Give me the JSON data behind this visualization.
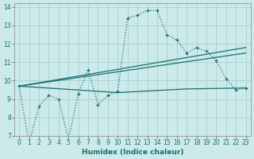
{
  "xlabel": "Humidex (Indice chaleur)",
  "bg_color": "#cceaea",
  "grid_color": "#aad4d4",
  "line_color": "#1a6e6e",
  "xlim": [
    -0.5,
    23.5
  ],
  "ylim": [
    7,
    14.2
  ],
  "xticks": [
    0,
    1,
    2,
    3,
    4,
    5,
    6,
    7,
    8,
    9,
    10,
    11,
    12,
    13,
    14,
    15,
    16,
    17,
    18,
    19,
    20,
    21,
    22,
    23
  ],
  "yticks": [
    7,
    8,
    9,
    10,
    11,
    12,
    13,
    14
  ],
  "line1_x": [
    0,
    1,
    2,
    3,
    4,
    5,
    6,
    7,
    8,
    9,
    10,
    11,
    12,
    13,
    14,
    15,
    16,
    17,
    18,
    19,
    20,
    21,
    22,
    23
  ],
  "line1_y": [
    9.7,
    6.6,
    8.6,
    9.2,
    9.0,
    6.8,
    9.3,
    10.6,
    8.7,
    9.2,
    9.4,
    13.4,
    13.55,
    13.8,
    13.8,
    12.5,
    12.2,
    11.5,
    11.8,
    11.6,
    11.1,
    10.1,
    9.5,
    9.6
  ],
  "line2_x": [
    0,
    23
  ],
  "line2_y": [
    9.7,
    11.8
  ],
  "line3_x": [
    0,
    10,
    17,
    23
  ],
  "line3_y": [
    9.7,
    9.35,
    9.55,
    9.6
  ],
  "line4_x": [
    0,
    23
  ],
  "line4_y": [
    9.7,
    11.5
  ]
}
